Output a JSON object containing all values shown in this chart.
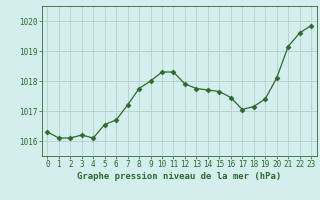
{
  "hours": [
    0,
    1,
    2,
    3,
    4,
    5,
    6,
    7,
    8,
    9,
    10,
    11,
    12,
    13,
    14,
    15,
    16,
    17,
    18,
    19,
    20,
    21,
    22,
    23
  ],
  "pressure": [
    1016.3,
    1016.1,
    1016.1,
    1016.2,
    1016.1,
    1016.55,
    1016.7,
    1017.2,
    1017.75,
    1018.0,
    1018.3,
    1018.3,
    1017.9,
    1017.75,
    1017.7,
    1017.65,
    1017.45,
    1017.05,
    1017.15,
    1017.4,
    1018.1,
    1019.15,
    1019.6,
    1019.85
  ],
  "line_color": "#2d6a2d",
  "marker": "D",
  "marker_size": 2.5,
  "bg_color": "#d4eeee",
  "grid_color": "#b0c8c8",
  "xlabel": "Graphe pression niveau de la mer (hPa)",
  "xlabel_color": "#2d6a2d",
  "tick_color": "#2d6a2d",
  "ylim": [
    1015.5,
    1020.5
  ],
  "yticks": [
    1016,
    1017,
    1018,
    1019,
    1020
  ],
  "label_fontsize": 6.5,
  "tick_fontsize": 5.5,
  "linewidth": 0.9
}
